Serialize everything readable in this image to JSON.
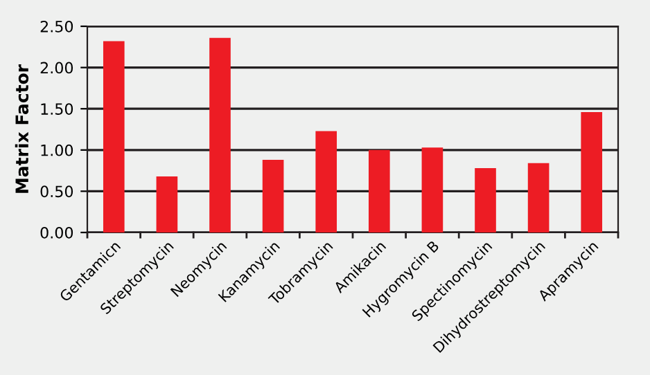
{
  "chart_data": {
    "type": "bar",
    "ylabel": "Matrix Factor",
    "categories": [
      "Gentamicn",
      "Streptomycin",
      "Neomycin",
      "Kanamycin",
      "Tobramycin",
      "Amikacin",
      "Hygromycin B",
      "Spectinomycin",
      "Dihydrostreptomycin",
      "Apramycin"
    ],
    "values": [
      2.32,
      0.68,
      2.36,
      0.88,
      1.23,
      1.0,
      1.03,
      0.78,
      0.84,
      1.46
    ],
    "color": "#ed1c24",
    "ylim": [
      0,
      2.5
    ],
    "yticks": [
      {
        "value": 0,
        "label": "0.00"
      },
      {
        "value": 0.5,
        "label": "0.50"
      },
      {
        "value": 1,
        "label": "1.00"
      },
      {
        "value": 1.5,
        "label": "1.50"
      },
      {
        "value": 2,
        "label": "2.00"
      },
      {
        "value": 2.5,
        "label": "2.50"
      }
    ],
    "grid": "y"
  }
}
